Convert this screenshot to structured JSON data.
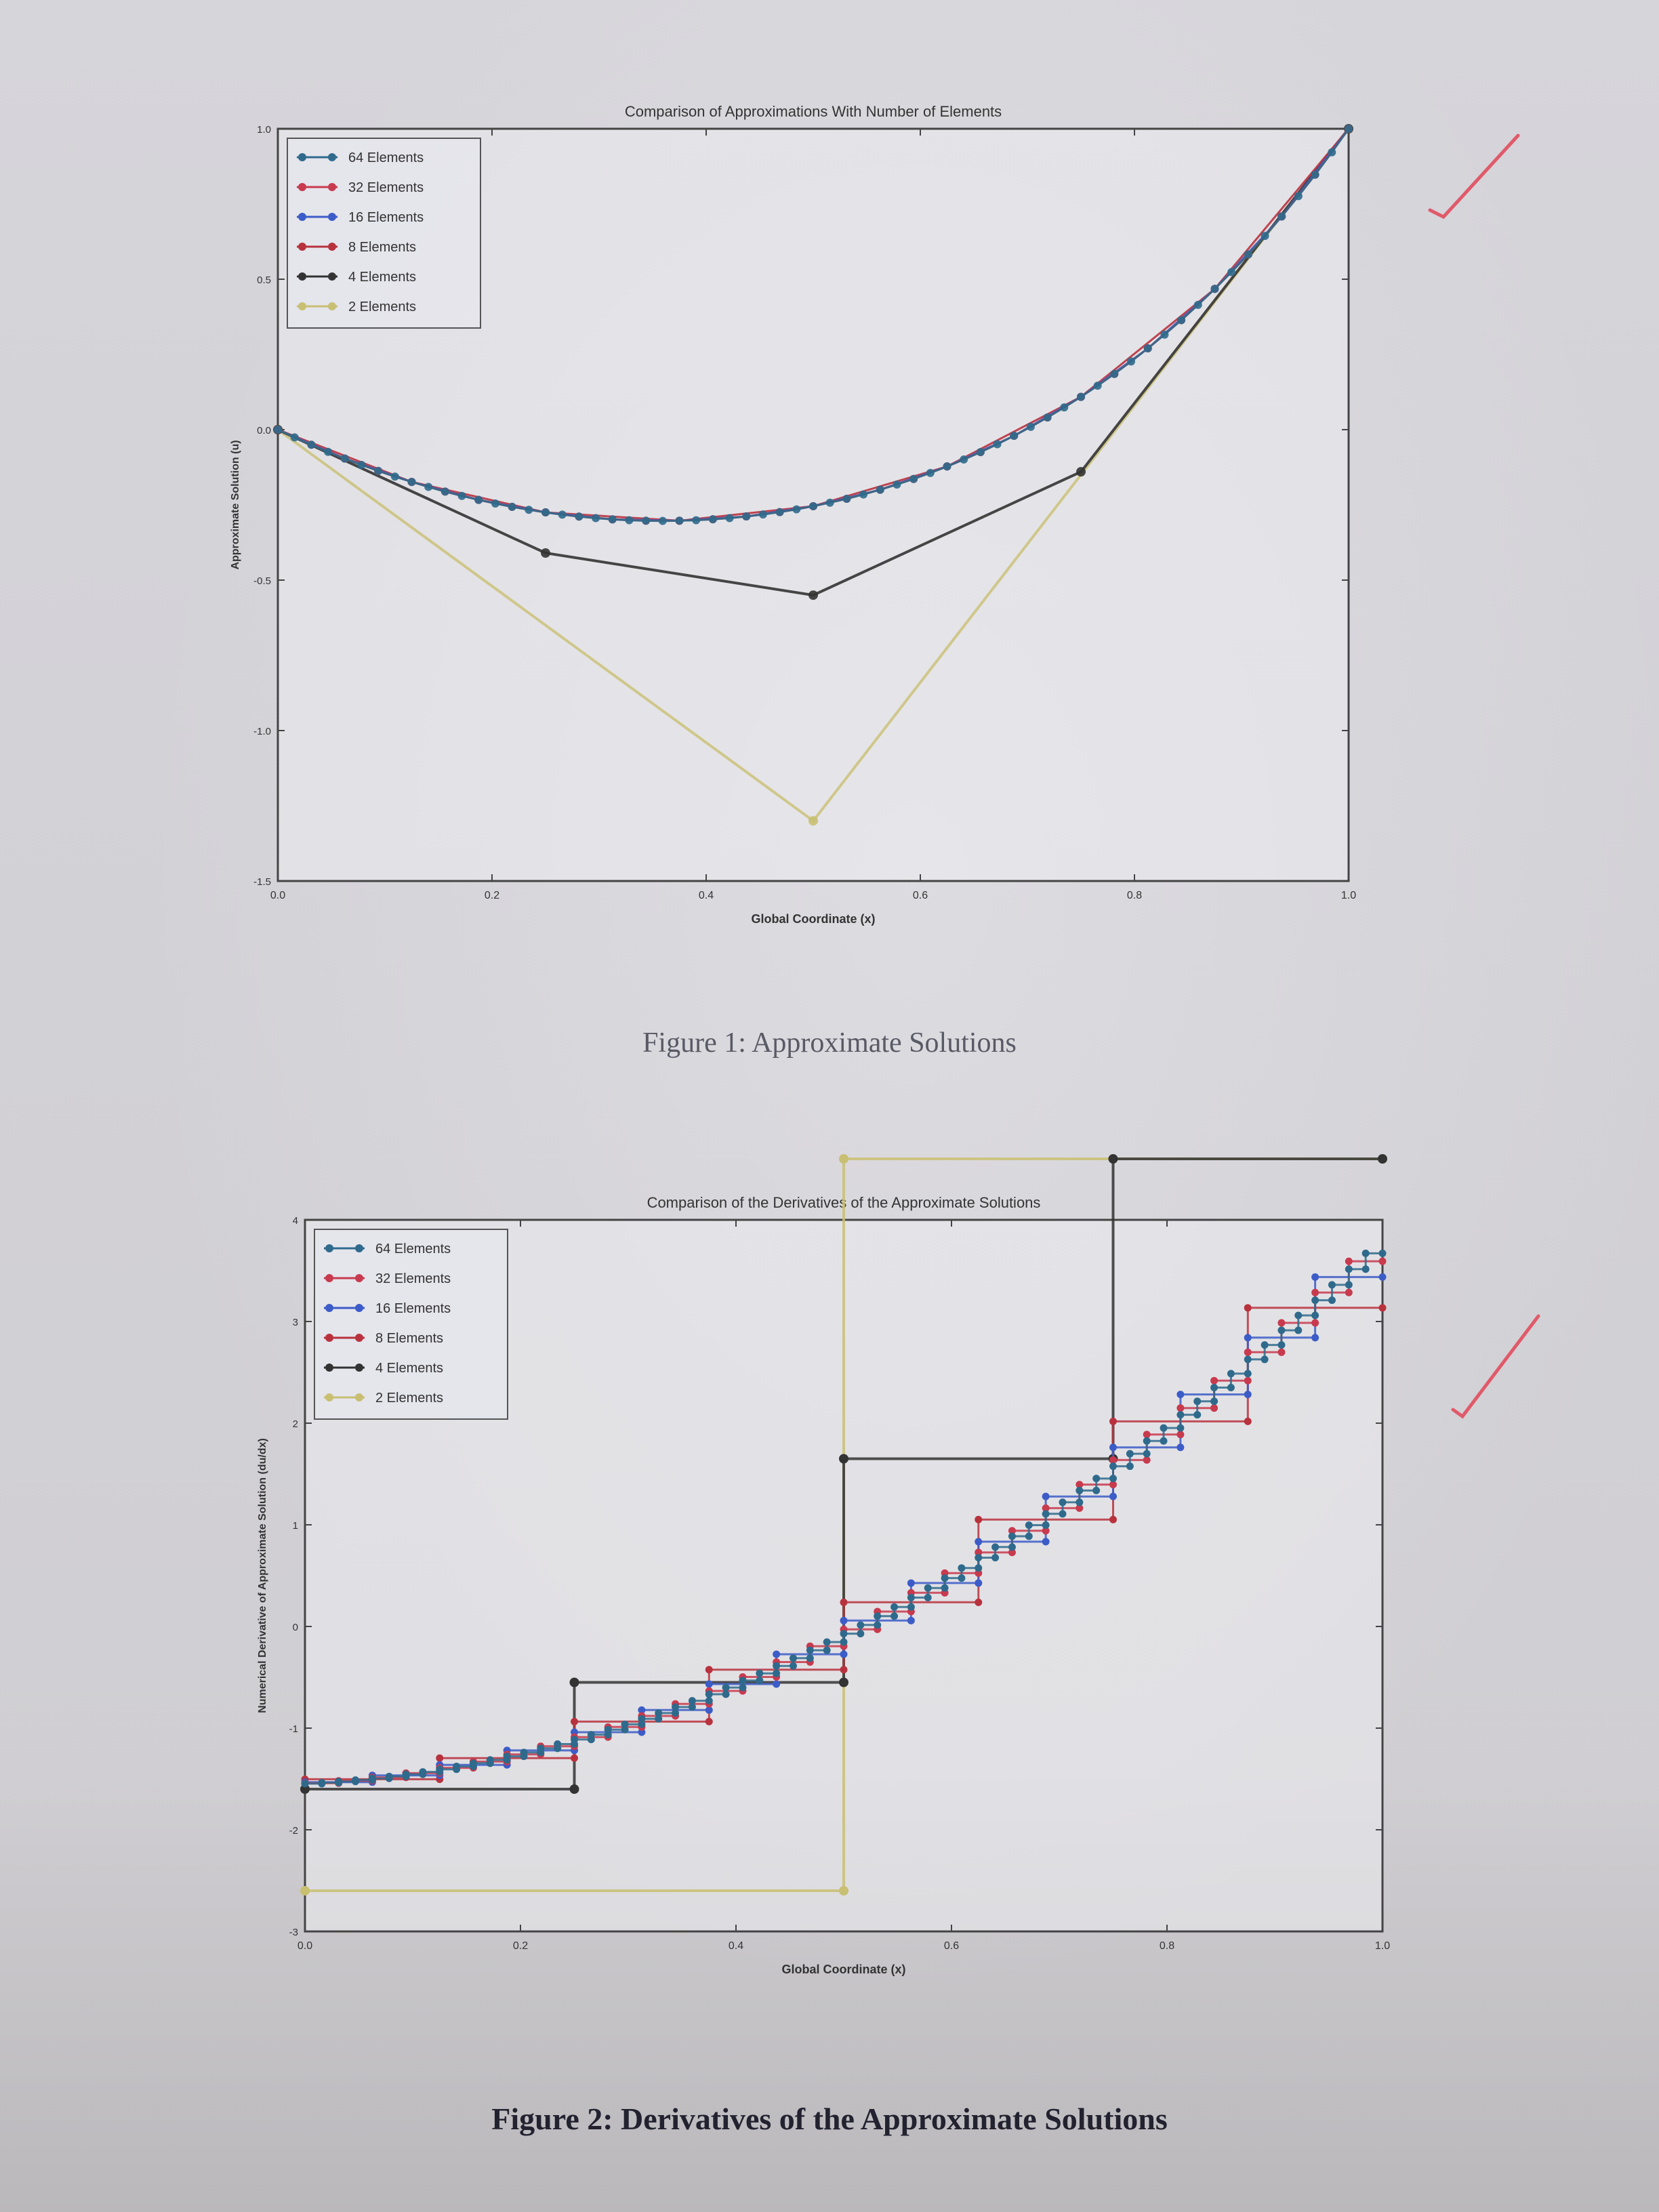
{
  "figures": [
    {
      "caption": "Figure 1: Approximate Solutions",
      "chart_data": {
        "type": "line",
        "title": "Comparison of Approximations With Number of Elements",
        "xlabel": "Global Coordinate (x)",
        "ylabel": "Approximate Solution (u)",
        "xlim": [
          0.0,
          1.0
        ],
        "ylim": [
          -1.5,
          1.0
        ],
        "xticks": [
          "0.0",
          "0.2",
          "0.4",
          "0.6",
          "0.8",
          "1.0"
        ],
        "yticks": [
          "1.0",
          "0.5",
          "0.0",
          "-0.5",
          "-1.0",
          "-1.5"
        ],
        "legend_position": "top-left",
        "series": [
          {
            "name": "64 Elements",
            "color": "#2f6a8c",
            "n": 64
          },
          {
            "name": "32 Elements",
            "color": "#c83a4e",
            "n": 32
          },
          {
            "name": "16 Elements",
            "color": "#3c5cc8",
            "n": 16
          },
          {
            "name": "8 Elements",
            "color": "#b8323e",
            "n": 8
          },
          {
            "name": "4 Elements",
            "color": "#333333",
            "n": 4,
            "x": [
              0.0,
              0.25,
              0.5,
              0.75,
              1.0
            ],
            "y": [
              0.0,
              -0.41,
              -0.55,
              -0.14,
              1.0
            ]
          },
          {
            "name": "2 Elements",
            "color": "#c9bf72",
            "n": 2,
            "x": [
              0.0,
              0.5,
              1.0
            ],
            "y": [
              0.0,
              -1.3,
              1.0
            ]
          }
        ]
      }
    },
    {
      "caption": "Figure 2: Derivatives of the Approximate Solutions",
      "chart_data": {
        "type": "line",
        "title": "Comparison of the Derivatives of the Approximate Solutions",
        "xlabel": "Global Coordinate (x)",
        "ylabel": "Numerical Derivative of Approximate Solution (du/dx)",
        "xlim": [
          0.0,
          1.0
        ],
        "ylim": [
          -3,
          4
        ],
        "xticks": [
          "0.0",
          "0.2",
          "0.4",
          "0.6",
          "0.8",
          "1.0"
        ],
        "yticks": [
          "4",
          "3",
          "2",
          "1",
          "0",
          "-1",
          "-2",
          "-3"
        ],
        "legend_position": "top-left",
        "series": [
          {
            "name": "64 Elements",
            "color": "#2f6a8c",
            "n": 64
          },
          {
            "name": "32 Elements",
            "color": "#c83a4e",
            "n": 32
          },
          {
            "name": "16 Elements",
            "color": "#3c5cc8",
            "n": 16
          },
          {
            "name": "8 Elements",
            "color": "#b8323e",
            "n": 8
          },
          {
            "name": "4 Elements",
            "color": "#333333",
            "n": 4,
            "steps": [
              -1.6,
              -0.55,
              1.65,
              4.6
            ]
          },
          {
            "name": "2 Elements",
            "color": "#c9bf72",
            "n": 2,
            "steps": [
              -2.6,
              4.6
            ]
          }
        ]
      }
    }
  ]
}
